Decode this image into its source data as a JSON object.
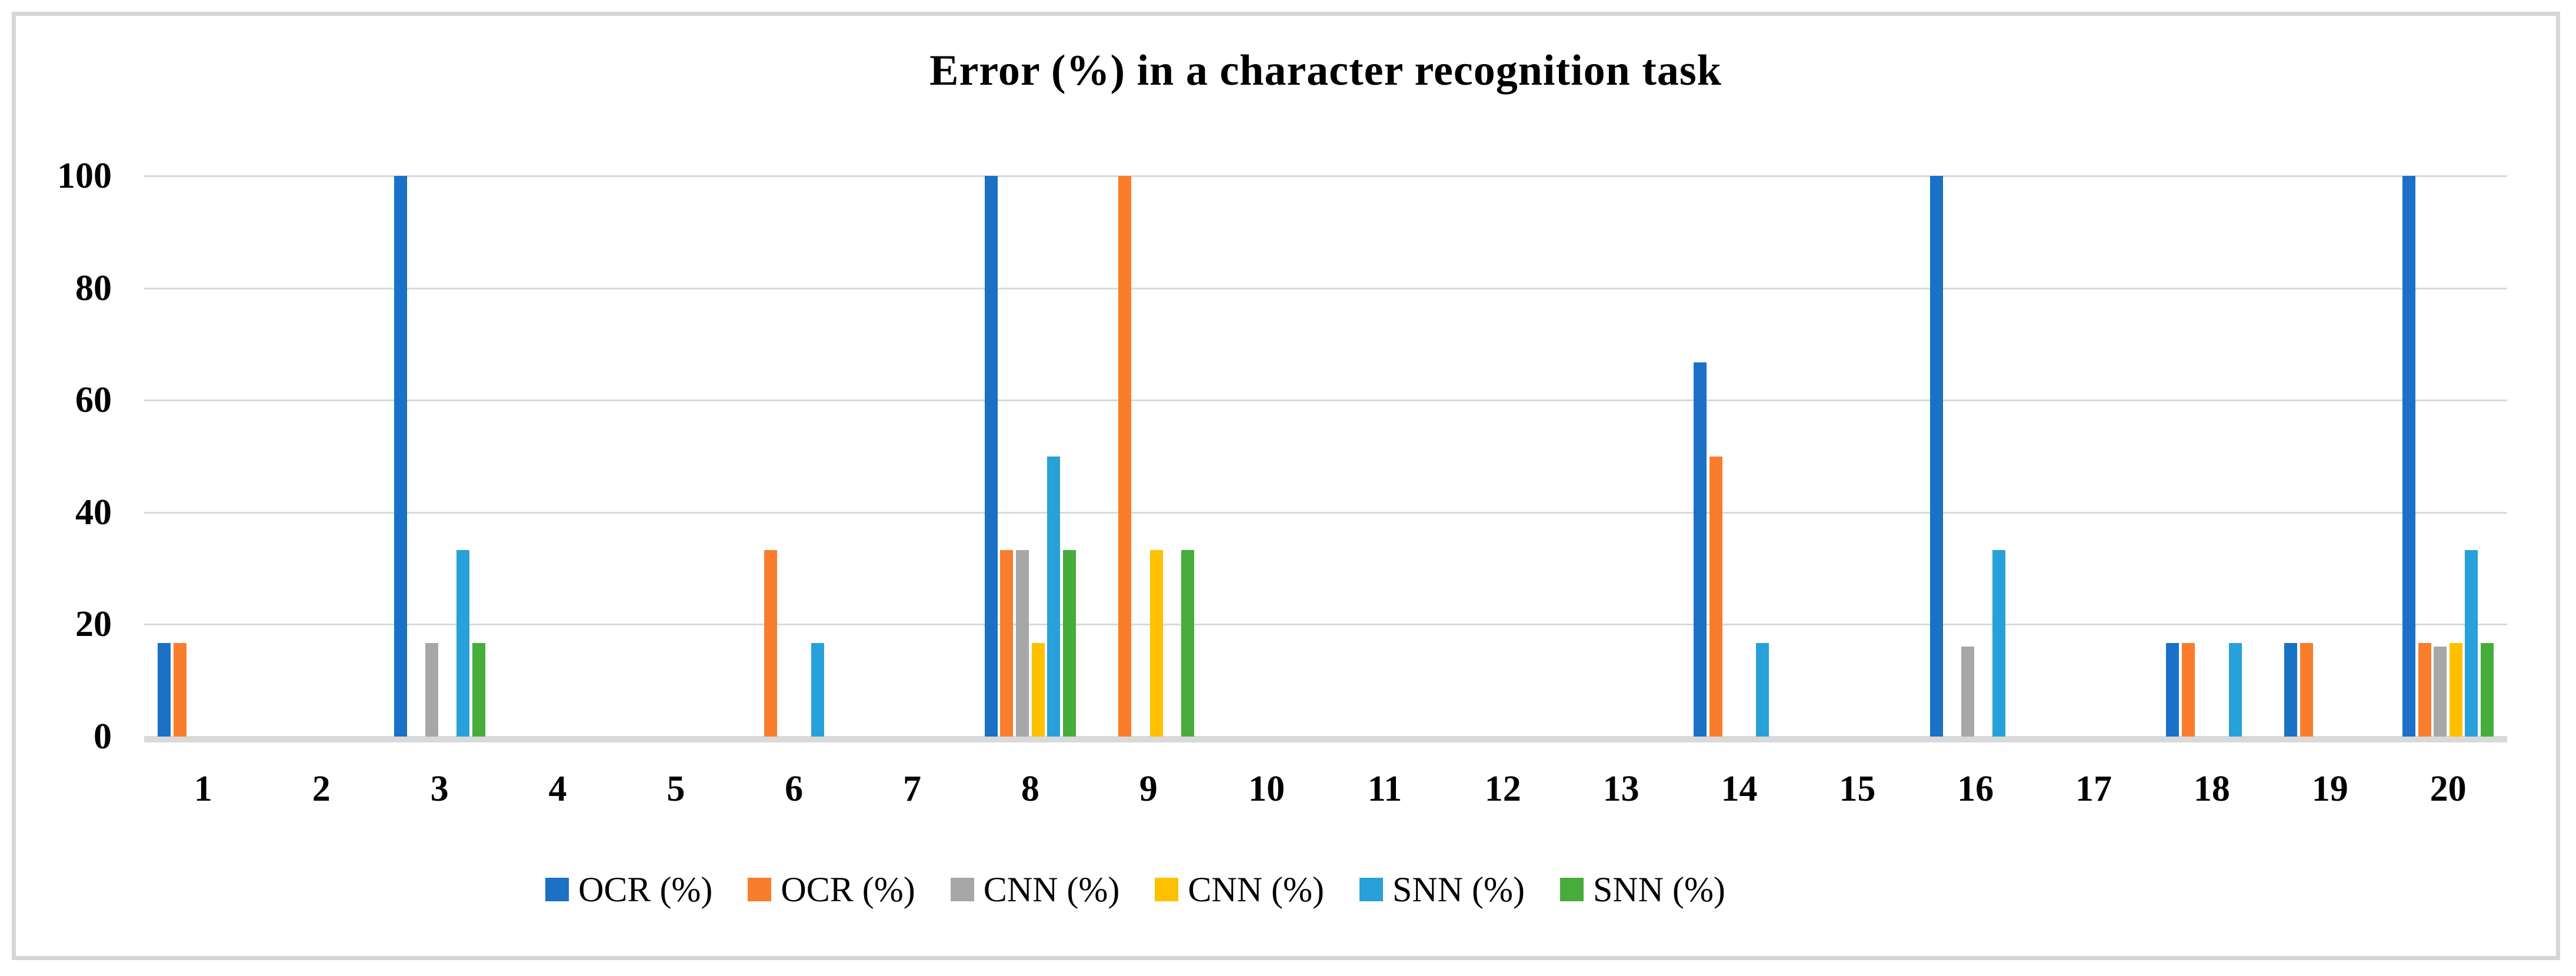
{
  "figure": {
    "background": "#ffffff",
    "border_color": "#d6d6d6",
    "gridline_color": "#d9d9d9",
    "axis_line_color": "#d9d9d9",
    "text_color": "#000000"
  },
  "chart_data": {
    "type": "bar",
    "title": "Error (%) in a character recognition task",
    "xlabel": "",
    "ylabel": "",
    "ylim": [
      0,
      100
    ],
    "yticks": [
      "0",
      "20",
      "40",
      "60",
      "80",
      "100"
    ],
    "grid": true,
    "legend_position": "bottom",
    "categories": [
      "1",
      "2",
      "3",
      "4",
      "5",
      "6",
      "7",
      "8",
      "9",
      "10",
      "11",
      "12",
      "13",
      "14",
      "15",
      "16",
      "17",
      "18",
      "19",
      "20"
    ],
    "series": [
      {
        "name": "OCR (%)",
        "color": "#1a71c6",
        "values": [
          16.7,
          0,
          100,
          0,
          0,
          0,
          0,
          100,
          0,
          0,
          0,
          0,
          0,
          66.7,
          0,
          100,
          0,
          16.7,
          16.7,
          100
        ]
      },
      {
        "name": "OCR (%)",
        "color": "#f97d2c",
        "values": [
          16.7,
          0,
          0,
          0,
          0,
          33.3,
          0,
          33.3,
          100,
          0,
          0,
          0,
          0,
          50,
          0,
          0,
          0,
          16.7,
          16.7,
          16.7
        ]
      },
      {
        "name": "CNN (%)",
        "color": "#a7a7a7",
        "values": [
          0,
          0,
          16.7,
          0,
          0,
          0,
          0,
          33.3,
          0,
          0,
          0,
          0,
          0,
          0,
          0,
          16.1,
          0,
          0,
          0,
          16.1
        ]
      },
      {
        "name": "CNN (%)",
        "color": "#ffc000",
        "values": [
          0,
          0,
          0,
          0,
          0,
          0,
          0,
          16.7,
          33.3,
          0,
          0,
          0,
          0,
          0,
          0,
          0,
          0,
          0,
          0,
          16.7
        ]
      },
      {
        "name": "SNN (%)",
        "color": "#28a0da",
        "values": [
          0,
          0,
          33.3,
          0,
          0,
          16.7,
          0,
          50,
          0,
          0,
          0,
          0,
          0,
          16.7,
          0,
          33.3,
          0,
          16.7,
          0,
          33.3
        ]
      },
      {
        "name": "SNN (%)",
        "color": "#46ac3b",
        "values": [
          0,
          0,
          16.7,
          0,
          0,
          0,
          0,
          33.3,
          33.3,
          0,
          0,
          0,
          0,
          0,
          0,
          0,
          0,
          0,
          0,
          16.7
        ]
      }
    ]
  }
}
